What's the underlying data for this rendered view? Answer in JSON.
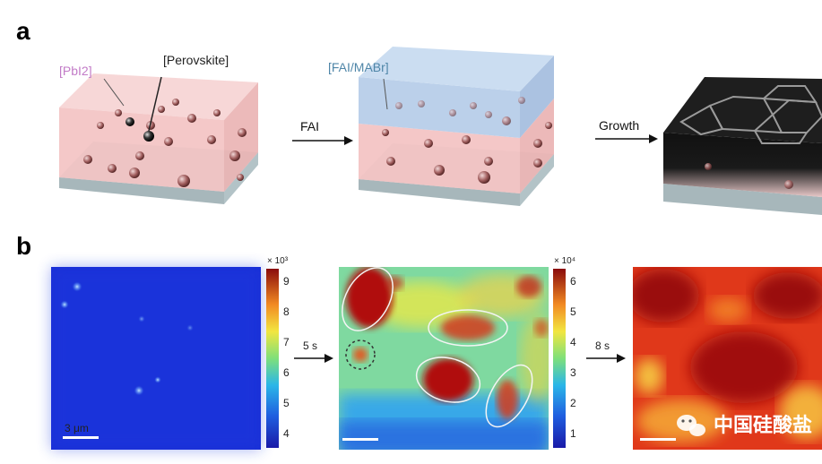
{
  "panel_a": {
    "letter": "a",
    "labels": {
      "pbi2": "[PbI2]",
      "perovskite": "[Perovskite]",
      "fai_mabr": "[FAI/MABr]"
    },
    "arrows": {
      "first": "FAI",
      "second": "Growth"
    }
  },
  "panel_b": {
    "letter": "b",
    "arrows": {
      "first": "5 s",
      "second": "8 s"
    },
    "scale_bar_label": "3 μm",
    "colorbar1": {
      "multiplier": "× 10³",
      "ticks": [
        "9",
        "8",
        "7",
        "6",
        "5",
        "4"
      ]
    },
    "colorbar2": {
      "multiplier": "× 10⁴",
      "ticks": [
        "6",
        "5",
        "4",
        "3",
        "2",
        "1"
      ]
    }
  },
  "watermark": {
    "text": "中国硅酸盐",
    "icon": "wechat-icon"
  },
  "colors": {
    "pbi2_label": "#c27bc7",
    "fai_label": "#4f86a8",
    "pink_layer": "#f3c2c2",
    "blue_layer": "#b7cde9",
    "substrate": "#c4d2d6"
  }
}
